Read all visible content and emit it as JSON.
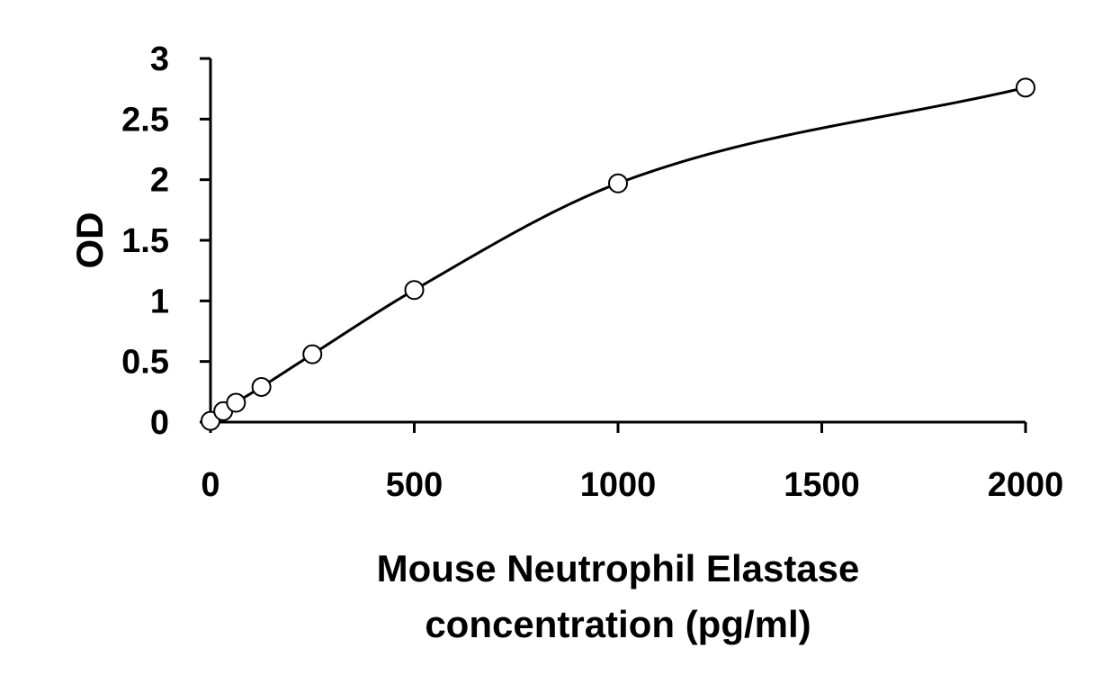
{
  "chart_data": {
    "type": "scatter",
    "title": "",
    "xlabel": [
      "Mouse Neutrophil Elastase",
      "concentration (pg/ml)"
    ],
    "ylabel": "OD",
    "xlim": [
      0,
      2000
    ],
    "ylim": [
      0,
      3
    ],
    "xticks": [
      0,
      500,
      1000,
      1500,
      2000
    ],
    "yticks": [
      "0",
      "0.5",
      "1",
      "1.5",
      "2",
      "2.5",
      "3"
    ],
    "grid": false,
    "legend": "none",
    "series": [
      {
        "marker": "open-circle",
        "line": "smooth-fit",
        "points": [
          {
            "x": 0,
            "y": 0.01
          },
          {
            "x": 31.25,
            "y": 0.09
          },
          {
            "x": 62.5,
            "y": 0.16
          },
          {
            "x": 125,
            "y": 0.29
          },
          {
            "x": 250,
            "y": 0.56
          },
          {
            "x": 500,
            "y": 1.09
          },
          {
            "x": 1000,
            "y": 1.97
          },
          {
            "x": 2000,
            "y": 2.76
          }
        ]
      }
    ]
  }
}
